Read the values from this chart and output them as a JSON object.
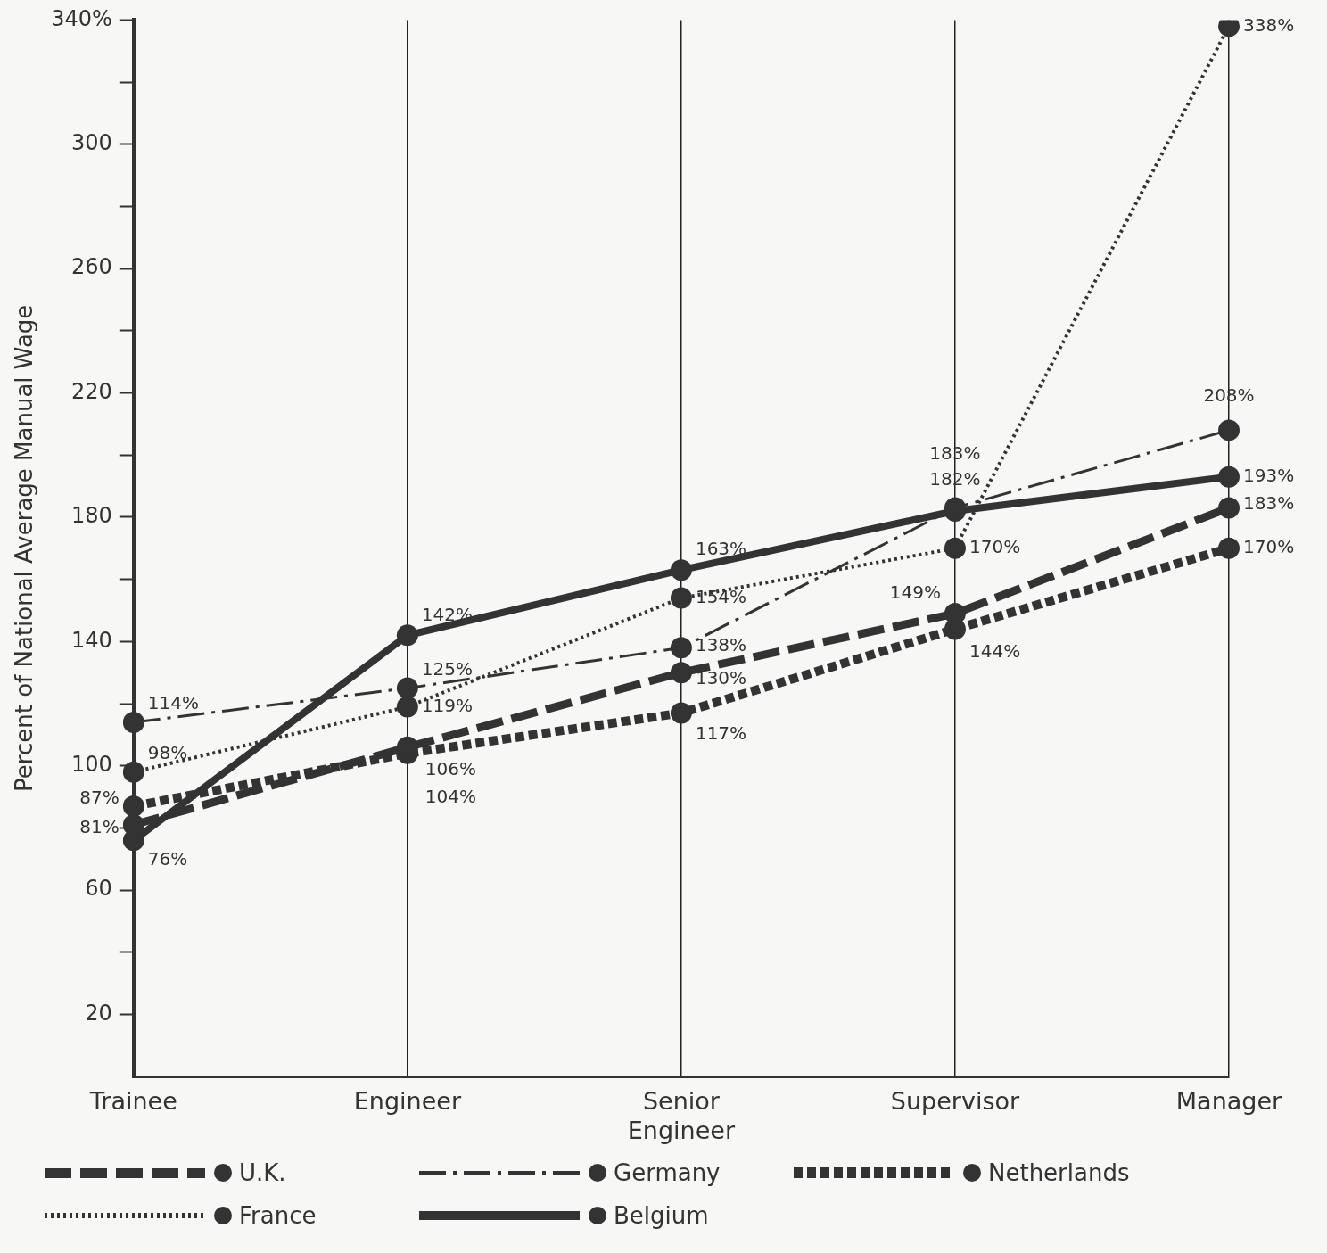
{
  "chart_data": {
    "type": "line",
    "ylabel": "Percent of National Average Manual Wage",
    "categories": [
      "Trainee",
      "Engineer",
      "Senior Engineer",
      "Supervisor",
      "Manager"
    ],
    "ylim": [
      0,
      340
    ],
    "yticks": [
      20,
      {
        "value": 40,
        "label": null
      },
      60,
      {
        "value": 80,
        "label": null
      },
      100,
      {
        "value": 120,
        "label": null
      },
      140,
      {
        "value": 160,
        "label": null
      },
      180,
      {
        "value": 200,
        "label": null
      },
      220,
      {
        "value": 240,
        "label": null
      },
      260,
      {
        "value": 280,
        "label": null
      },
      300,
      {
        "value": 320,
        "label": null
      },
      {
        "value": 340,
        "label": "340%"
      }
    ],
    "grid": "x",
    "legend": "bottom",
    "marker": "circle",
    "series": [
      {
        "name": "U.K.",
        "color": "#333333",
        "line_style": "dashed",
        "values": [
          81,
          106,
          130,
          149,
          183
        ],
        "value_labels": [
          "81%",
          "106%",
          "130%",
          "149%",
          "183%"
        ]
      },
      {
        "name": "Germany",
        "color": "#333333",
        "line_style": "dashdot",
        "values": [
          114,
          125,
          138,
          183,
          208
        ],
        "value_labels": [
          "114%",
          "125%",
          "138%",
          "183%",
          "208%"
        ]
      },
      {
        "name": "Netherlands",
        "color": "#333333",
        "line_style": "dotted",
        "values": [
          87,
          104,
          117,
          144,
          170
        ],
        "value_labels": [
          "87%",
          "104%",
          "117%",
          "144%",
          "170%"
        ]
      },
      {
        "name": "France",
        "color": "#333333",
        "line_style": "dotted",
        "values": [
          98,
          119,
          154,
          170,
          338
        ],
        "value_labels": [
          "98%",
          "119%",
          "154%",
          "170%",
          "338%"
        ]
      },
      {
        "name": "Belgium",
        "color": "#333333",
        "line_style": "solid",
        "values": [
          76,
          142,
          163,
          182,
          193
        ],
        "value_labels": [
          "76%",
          "142%",
          "163%",
          "182%",
          "193%"
        ]
      }
    ]
  }
}
